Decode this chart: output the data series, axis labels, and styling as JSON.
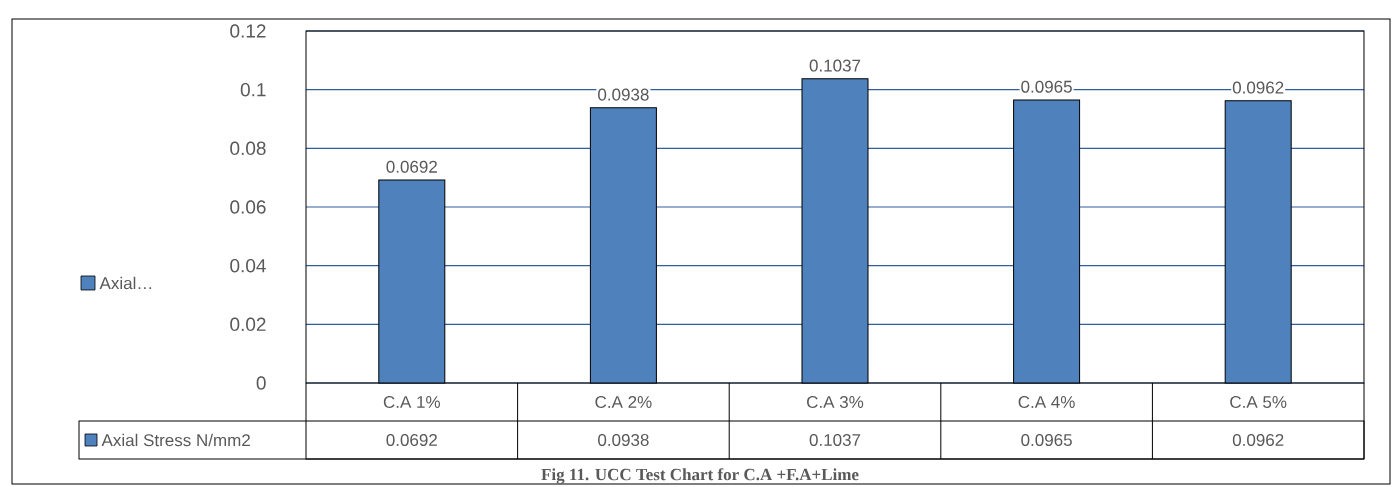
{
  "chart_data": {
    "type": "bar",
    "categories": [
      "C.A 1%",
      "C.A 2%",
      "C.A 3%",
      "C.A 4%",
      "C.A 5%"
    ],
    "series": [
      {
        "name": "Axial Stress N/mm2",
        "color": "#4f81bd",
        "values": [
          0.0692,
          0.0938,
          0.1037,
          0.0965,
          0.0962
        ]
      }
    ],
    "ylim": [
      0,
      0.12
    ],
    "yticks": [
      0,
      0.02,
      0.04,
      0.06,
      0.08,
      0.1,
      0.12
    ],
    "grid": "y",
    "data_labels": true,
    "legend": "left",
    "annotations": [
      "Axial…",
      "Fig 11. UCC Test Chart for C.A +F.A+Lime",
      "0.0692",
      "0.0938",
      "0.1037",
      "0.0965",
      "0.0962"
    ]
  }
}
